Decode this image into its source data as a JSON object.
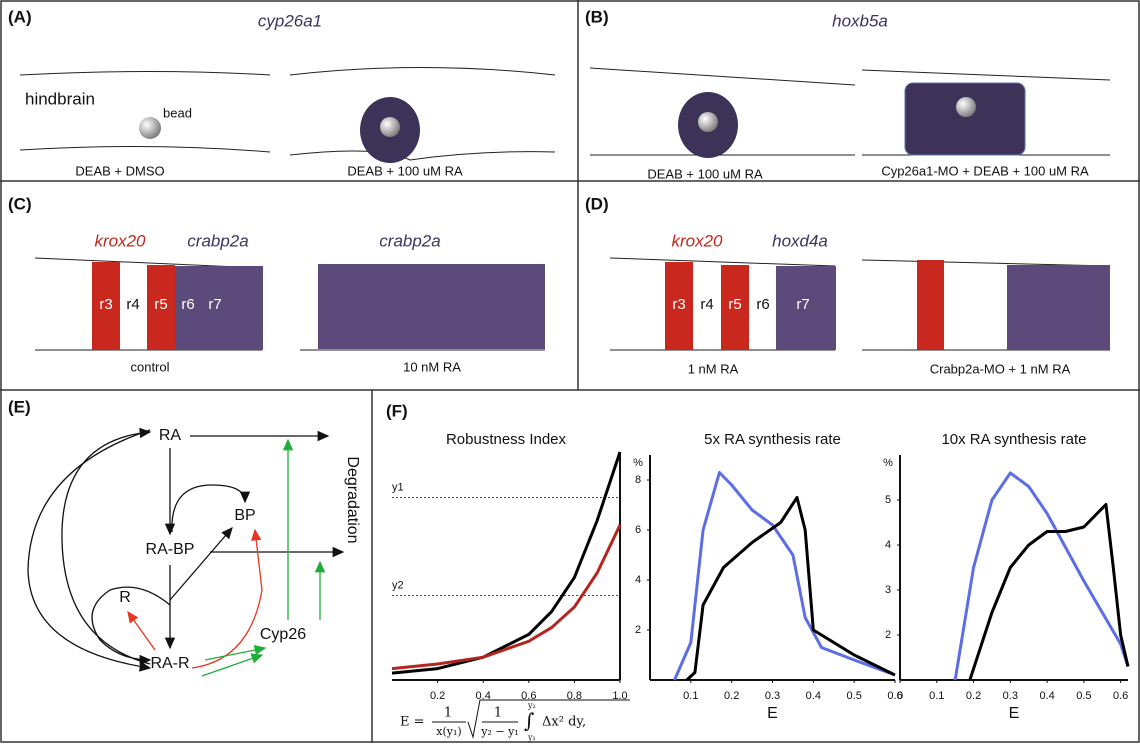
{
  "panels": {
    "A": {
      "label": "(A)",
      "gene": "cyp26a1",
      "region": "hindbrain",
      "bead": "bead",
      "captions": [
        "DEAB + DMSO",
        "DEAB + 100 uM RA"
      ]
    },
    "B": {
      "label": "(B)",
      "gene": "hoxb5a",
      "captions": [
        "DEAB + 100 uM RA",
        "Cyp26a1-MO + DEAB + 100 uM RA"
      ]
    },
    "C": {
      "label": "(C)",
      "genes": [
        "krox20",
        "crabp2a",
        "crabp2a"
      ],
      "rhombomeres": [
        "r3",
        "r4",
        "r5",
        "r6",
        "r7"
      ],
      "captions": [
        "control",
        "10 nM RA"
      ]
    },
    "D": {
      "label": "(D)",
      "genes": [
        "krox20",
        "hoxd4a"
      ],
      "rhombomeres": [
        "r3",
        "r4",
        "r5",
        "r6",
        "r7"
      ],
      "captions": [
        "1 nM RA",
        "Crabp2a-MO + 1 nM RA"
      ]
    },
    "E": {
      "label": "(E)",
      "nodes": [
        "RA",
        "RA-BP",
        "BP",
        "R",
        "RA-R",
        "Cyp26"
      ],
      "sink": "Degradation"
    },
    "F": {
      "label": "(F)",
      "formula": {
        "lhs": "E =",
        "frac1_num": "1",
        "frac1_den": "x(y₁)",
        "frac2_num": "1",
        "frac2_den": "y₂ − y₁",
        "integral": "∫",
        "upper": "y₂",
        "lower": "y₁",
        "integrand": "Δx² dy,"
      }
    }
  },
  "chart_data": [
    {
      "type": "line",
      "title": "Robustness Index",
      "xlim": [
        0,
        1
      ],
      "xticks": [
        0.2,
        0.4,
        0.6,
        0.8,
        {
          "value": 1,
          "label": "1.0"
        }
      ],
      "ylim": [
        0,
        1
      ],
      "reference_lines": [
        {
          "label": "y1",
          "value": 0.8
        },
        {
          "label": "y2",
          "value": 0.37
        }
      ],
      "series": [
        {
          "color": "#000000",
          "x": [
            0,
            0.2,
            0.4,
            0.6,
            0.7,
            0.8,
            0.9,
            1
          ],
          "values": [
            0.03,
            0.05,
            0.1,
            0.2,
            0.3,
            0.45,
            0.7,
            1
          ]
        },
        {
          "color": "#b3261e",
          "x": [
            0,
            0.2,
            0.4,
            0.6,
            0.7,
            0.8,
            0.9,
            1
          ],
          "values": [
            0.05,
            0.07,
            0.1,
            0.17,
            0.23,
            0.32,
            0.47,
            0.68
          ]
        }
      ]
    },
    {
      "type": "line",
      "title": "5x RA synthesis rate",
      "x_label": "E",
      "y_unit": "%",
      "xlim": [
        0,
        0.6
      ],
      "xticks": [
        0.1,
        0.2,
        0.3,
        0.4,
        0.5,
        0.6
      ],
      "ylim": [
        0,
        9
      ],
      "yticks": [
        2,
        4,
        6,
        8
      ],
      "series": [
        {
          "color": "#5b6ee6",
          "x": [
            0.06,
            0.1,
            0.13,
            0.17,
            0.2,
            0.25,
            0.3,
            0.35,
            0.38,
            0.42,
            0.5,
            0.6
          ],
          "values": [
            0,
            1.5,
            6,
            8.3,
            7.8,
            6.8,
            6.2,
            5,
            2.5,
            1.3,
            0.8,
            0.2
          ]
        },
        {
          "color": "#000000",
          "x": [
            0.09,
            0.11,
            0.13,
            0.18,
            0.25,
            0.32,
            0.36,
            0.38,
            0.4,
            0.5,
            0.6
          ],
          "values": [
            0,
            0.3,
            3,
            4.5,
            5.5,
            6.3,
            7.3,
            6,
            2,
            1,
            0.2
          ]
        }
      ]
    },
    {
      "type": "line",
      "title": "10x RA synthesis rate",
      "x_label": "E",
      "y_unit": "%",
      "xlim": [
        0,
        0.62
      ],
      "xticks": [
        0,
        0.1,
        0.2,
        0.3,
        0.4,
        0.5,
        0.6
      ],
      "ylim": [
        1,
        6
      ],
      "yticks": [
        2,
        3,
        4,
        5
      ],
      "series": [
        {
          "color": "#5b6ee6",
          "x": [
            0.15,
            0.2,
            0.25,
            0.3,
            0.35,
            0.4,
            0.5,
            0.6,
            0.62
          ],
          "values": [
            1,
            3.5,
            5,
            5.6,
            5.3,
            4.7,
            3.2,
            1.8,
            1.3
          ]
        },
        {
          "color": "#000000",
          "x": [
            0.19,
            0.25,
            0.3,
            0.35,
            0.4,
            0.45,
            0.5,
            0.56,
            0.58,
            0.6,
            0.62
          ],
          "values": [
            1,
            2.5,
            3.5,
            4,
            4.3,
            4.3,
            4.4,
            4.9,
            3.5,
            2,
            1.3
          ]
        }
      ]
    }
  ]
}
